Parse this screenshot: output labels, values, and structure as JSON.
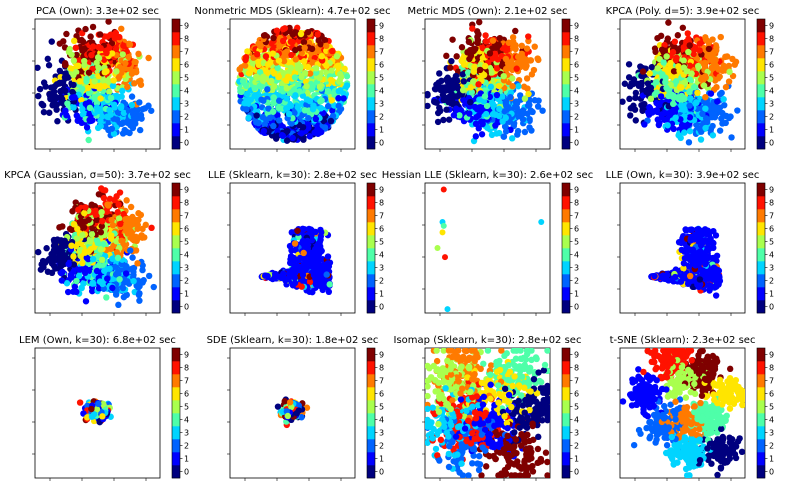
{
  "figure": {
    "description_free": true,
    "colorbar_colors": [
      "#00007f",
      "#0000ff",
      "#0063ff",
      "#00d4ff",
      "#4effa9",
      "#a9ff4e",
      "#ffe500",
      "#ff7a00",
      "#ff1200",
      "#7f0000"
    ]
  },
  "chart_data": [
    {
      "type": "scatter",
      "title": "PCA (Own): 3.3e+02 sec",
      "pattern": "blob",
      "colorbar_ticks": [
        "0",
        "1",
        "2",
        "3",
        "4",
        "5",
        "6",
        "7",
        "8",
        "9"
      ],
      "clim": [
        -0.5,
        9.5
      ]
    },
    {
      "type": "scatter",
      "title": "Nonmetric MDS (Sklearn): 4.7e+02 sec",
      "pattern": "bands",
      "colorbar_ticks": [
        "0",
        "1",
        "2",
        "3",
        "4",
        "5",
        "6",
        "7",
        "8",
        "9"
      ],
      "clim": [
        -0.5,
        9.5
      ]
    },
    {
      "type": "scatter",
      "title": "Metric MDS (Own): 2.1e+02 sec",
      "pattern": "blob",
      "colorbar_ticks": [
        "0",
        "1",
        "2",
        "3",
        "4",
        "5",
        "6",
        "7",
        "8",
        "9"
      ],
      "clim": [
        -0.5,
        9.5
      ]
    },
    {
      "type": "scatter",
      "title": "KPCA (Poly. d=5): 3.9e+02 sec",
      "pattern": "blob",
      "colorbar_ticks": [
        "0",
        "1",
        "2",
        "3",
        "4",
        "5",
        "6",
        "7",
        "8",
        "9"
      ],
      "clim": [
        -0.5,
        9.5
      ]
    },
    {
      "type": "scatter",
      "title": "KPCA (Gaussian, σ=50): 3.7e+02 sec",
      "pattern": "blob",
      "colorbar_ticks": [
        "0",
        "1",
        "2",
        "3",
        "4",
        "5",
        "6",
        "7",
        "8",
        "9"
      ],
      "clim": [
        -0.5,
        9.5
      ]
    },
    {
      "type": "scatter",
      "title": "LLE (Sklearn, k=30): 2.8e+02 sec",
      "pattern": "fan",
      "colorbar_ticks": [
        "0",
        "1",
        "2",
        "3",
        "4",
        "5",
        "6",
        "7",
        "8",
        "9"
      ],
      "clim": [
        -0.5,
        9.5
      ]
    },
    {
      "type": "scatter",
      "title": "Hessian LLE (Sklearn, k=30): 2.6e+02 sec",
      "pattern": "sparse",
      "colorbar_ticks": [
        "0",
        "1",
        "2",
        "3",
        "4",
        "5",
        "6",
        "7",
        "8",
        "9"
      ],
      "clim": [
        -0.5,
        9.5
      ]
    },
    {
      "type": "scatter",
      "title": "LLE (Own, k=30): 3.9e+02 sec",
      "pattern": "fan",
      "colorbar_ticks": [
        "0",
        "1",
        "2",
        "3",
        "4",
        "5",
        "6",
        "7",
        "8",
        "9"
      ],
      "clim": [
        -0.5,
        9.5
      ]
    },
    {
      "type": "scatter",
      "title": "LEM (Own, k=30): 6.8e+02 sec",
      "pattern": "tiny",
      "colorbar_ticks": [
        "0",
        "1",
        "2",
        "3",
        "4",
        "5",
        "6",
        "7",
        "8",
        "9"
      ],
      "clim": [
        -0.5,
        9.5
      ]
    },
    {
      "type": "scatter",
      "title": "SDE (Sklearn, k=30): 1.8e+02 sec",
      "pattern": "tiny2",
      "colorbar_ticks": [
        "0",
        "1",
        "2",
        "3",
        "4",
        "5",
        "6",
        "7",
        "8",
        "9"
      ],
      "clim": [
        -0.5,
        9.5
      ]
    },
    {
      "type": "scatter",
      "title": "Isomap (Sklearn, k=30): 2.8e+02 sec",
      "pattern": "mix",
      "colorbar_ticks": [
        "0",
        "1",
        "2",
        "3",
        "4",
        "5",
        "6",
        "7",
        "8",
        "9"
      ],
      "clim": [
        -0.5,
        9.5
      ]
    },
    {
      "type": "scatter",
      "title": "t-SNE (Sklearn): 2.3e+02 sec",
      "pattern": "clusters",
      "colorbar_ticks": [
        "0",
        "1",
        "2",
        "3",
        "4",
        "5",
        "6",
        "7",
        "8",
        "9"
      ],
      "clim": [
        -0.5,
        9.5
      ]
    }
  ]
}
